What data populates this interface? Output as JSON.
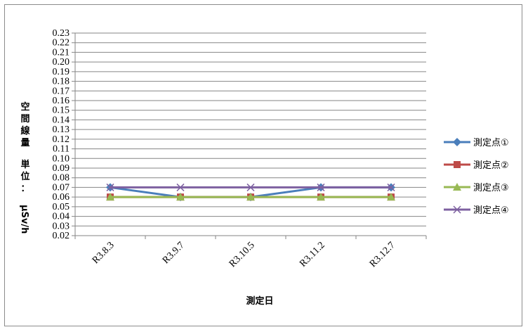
{
  "chart_data": {
    "type": "line",
    "title": "",
    "xlabel": "測定日",
    "ylabel": "空間線量 単位：μSv/h",
    "ylabel_parts": [
      "空間線量",
      "単位：μSv/h"
    ],
    "categories": [
      "R3.8.3",
      "R3.9.7",
      "R3.10.5",
      "R3.11.2",
      "R3.12.7"
    ],
    "ylim": [
      0.02,
      0.23
    ],
    "ystep": 0.01,
    "grid": true,
    "legend_position": "right",
    "series": [
      {
        "name": "測定点①",
        "color": "#4a7ebb",
        "marker": "diamond",
        "values": [
          0.07,
          0.06,
          0.06,
          0.07,
          0.07
        ]
      },
      {
        "name": "測定点②",
        "color": "#be4b48",
        "marker": "square",
        "values": [
          0.06,
          0.06,
          0.06,
          0.06,
          0.06
        ]
      },
      {
        "name": "測定点③",
        "color": "#98b954",
        "marker": "triangle",
        "values": [
          0.06,
          0.06,
          0.06,
          0.06,
          0.06
        ]
      },
      {
        "name": "測定点④",
        "color": "#7d60a0",
        "marker": "x",
        "values": [
          0.07,
          0.07,
          0.07,
          0.07,
          0.07
        ]
      }
    ]
  }
}
